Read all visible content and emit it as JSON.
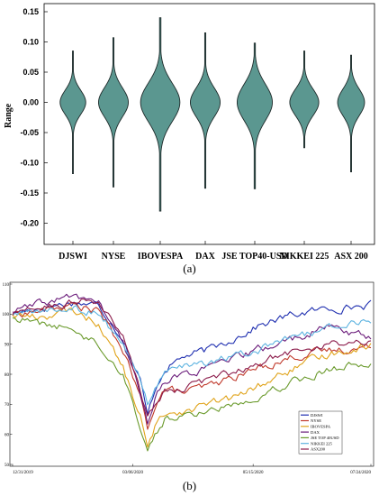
{
  "panel_a": {
    "label": "(a)"
  },
  "panel_b": {
    "label": "(b)"
  },
  "chart_data": [
    {
      "type": "violin",
      "ylabel": "Range",
      "ylim": [
        -0.25,
        0.16
      ],
      "yticks": [
        0.15,
        0.1,
        0.05,
        0.0,
        -0.05,
        -0.1,
        -0.15,
        -0.2
      ],
      "ytick_labels": [
        "0.15",
        "0.10",
        "0.05",
        "0.00",
        "-0.05",
        "-0.10",
        "-0.15",
        "-0.20"
      ],
      "color": "#5b9790",
      "categories": [
        "DJSWI",
        "NYSE",
        "IBOVESPA",
        "DAX",
        "JSE TOP40-USD",
        "NIKKEI 225",
        "ASX 200"
      ],
      "series": [
        {
          "name": "DJSWI",
          "max": 0.085,
          "min": -0.118,
          "width": 0.62,
          "spread": 0.02
        },
        {
          "name": "NYSE",
          "max": 0.107,
          "min": -0.14,
          "width": 0.72,
          "spread": 0.024
        },
        {
          "name": "IBOVESPA",
          "max": 0.14,
          "min": -0.18,
          "width": 0.95,
          "spread": 0.032
        },
        {
          "name": "DAX",
          "max": 0.115,
          "min": -0.142,
          "width": 0.72,
          "spread": 0.024
        },
        {
          "name": "JSE TOP40-USD",
          "max": 0.098,
          "min": -0.143,
          "width": 0.85,
          "spread": 0.03
        },
        {
          "name": "NIKKEI 225",
          "max": 0.085,
          "min": -0.075,
          "width": 0.7,
          "spread": 0.022
        },
        {
          "name": "ASX 200",
          "max": 0.078,
          "min": -0.115,
          "width": 0.65,
          "spread": 0.022
        }
      ]
    },
    {
      "type": "line",
      "x_tick_labels": [
        "12/31/2019",
        "03/06/2020",
        "05/15/2020",
        "07/24/2020"
      ],
      "yticks": [
        50,
        60,
        70,
        80,
        90,
        100,
        110
      ],
      "ytick_labels": [
        "50",
        "60",
        "70",
        "80",
        "90",
        "100",
        "110"
      ],
      "ylim": [
        50,
        110
      ],
      "n_points": 147,
      "series": [
        {
          "name": "DJSWI",
          "color": "#1f2fb0",
          "keys": [
            [
              0,
              100
            ],
            [
              10,
              102
            ],
            [
              25,
              104
            ],
            [
              35,
              103
            ],
            [
              45,
              92
            ],
            [
              52,
              78
            ],
            [
              55,
              66
            ],
            [
              58,
              75
            ],
            [
              62,
              82
            ],
            [
              70,
              86
            ],
            [
              80,
              88
            ],
            [
              90,
              92
            ],
            [
              100,
              96
            ],
            [
              115,
              100
            ],
            [
              130,
              102
            ],
            [
              146,
              103
            ]
          ]
        },
        {
          "name": "NYSE",
          "color": "#c0392b",
          "keys": [
            [
              0,
              100
            ],
            [
              10,
              101
            ],
            [
              25,
              103
            ],
            [
              35,
              101
            ],
            [
              45,
              88
            ],
            [
              52,
              72
            ],
            [
              55,
              62
            ],
            [
              58,
              70
            ],
            [
              62,
              75
            ],
            [
              70,
              74
            ],
            [
              80,
              76
            ],
            [
              90,
              79
            ],
            [
              100,
              82
            ],
            [
              115,
              86
            ],
            [
              130,
              88
            ],
            [
              146,
              89
            ]
          ]
        },
        {
          "name": "IBOVESPA",
          "color": "#e0a31a",
          "keys": [
            [
              0,
              100
            ],
            [
              10,
              99
            ],
            [
              25,
              101
            ],
            [
              35,
              97
            ],
            [
              45,
              82
            ],
            [
              52,
              66
            ],
            [
              55,
              55
            ],
            [
              58,
              62
            ],
            [
              62,
              67
            ],
            [
              70,
              68
            ],
            [
              80,
              70
            ],
            [
              90,
              72
            ],
            [
              100,
              76
            ],
            [
              115,
              82
            ],
            [
              130,
              87
            ],
            [
              146,
              90
            ]
          ]
        },
        {
          "name": "DAX",
          "color": "#6a1b7a",
          "keys": [
            [
              0,
              101
            ],
            [
              10,
              103
            ],
            [
              25,
              106
            ],
            [
              35,
              104
            ],
            [
              45,
              90
            ],
            [
              52,
              74
            ],
            [
              55,
              64
            ],
            [
              58,
              72
            ],
            [
              62,
              78
            ],
            [
              70,
              80
            ],
            [
              80,
              82
            ],
            [
              90,
              85
            ],
            [
              100,
              88
            ],
            [
              115,
              92
            ],
            [
              130,
              96
            ],
            [
              146,
              92
            ]
          ]
        },
        {
          "name": "JSE TOP40-USD",
          "color": "#6a9a2c",
          "keys": [
            [
              0,
              99
            ],
            [
              10,
              97
            ],
            [
              25,
              95
            ],
            [
              35,
              90
            ],
            [
              45,
              80
            ],
            [
              52,
              63
            ],
            [
              55,
              54
            ],
            [
              58,
              60
            ],
            [
              62,
              65
            ],
            [
              70,
              66
            ],
            [
              80,
              68
            ],
            [
              90,
              70
            ],
            [
              100,
              73
            ],
            [
              115,
              78
            ],
            [
              130,
              82
            ],
            [
              146,
              84
            ]
          ]
        },
        {
          "name": "NIKKEI 225",
          "color": "#5db3e0",
          "keys": [
            [
              0,
              100
            ],
            [
              10,
              101
            ],
            [
              25,
              102
            ],
            [
              35,
              100
            ],
            [
              45,
              90
            ],
            [
              52,
              78
            ],
            [
              55,
              70
            ],
            [
              58,
              76
            ],
            [
              62,
              80
            ],
            [
              70,
              82
            ],
            [
              80,
              84
            ],
            [
              90,
              86
            ],
            [
              100,
              88
            ],
            [
              115,
              92
            ],
            [
              130,
              96
            ],
            [
              146,
              98
            ]
          ]
        },
        {
          "name": "ASX 200",
          "color": "#8b1a4a",
          "keys": [
            [
              0,
              100
            ],
            [
              10,
              102
            ],
            [
              25,
              104
            ],
            [
              35,
              104
            ],
            [
              45,
              93
            ],
            [
              52,
              74
            ],
            [
              55,
              65
            ],
            [
              58,
              70
            ],
            [
              62,
              74
            ],
            [
              70,
              76
            ],
            [
              80,
              78
            ],
            [
              90,
              80
            ],
            [
              100,
              84
            ],
            [
              115,
              88
            ],
            [
              130,
              90
            ],
            [
              146,
              91
            ]
          ]
        }
      ],
      "legend": [
        "DJSWI",
        "NYSE",
        "IBOVESPA",
        "DAX",
        "JSE TOP 40USD",
        "NIKKEI 225",
        "ASX200"
      ],
      "legend_position": "bottom-right"
    }
  ]
}
